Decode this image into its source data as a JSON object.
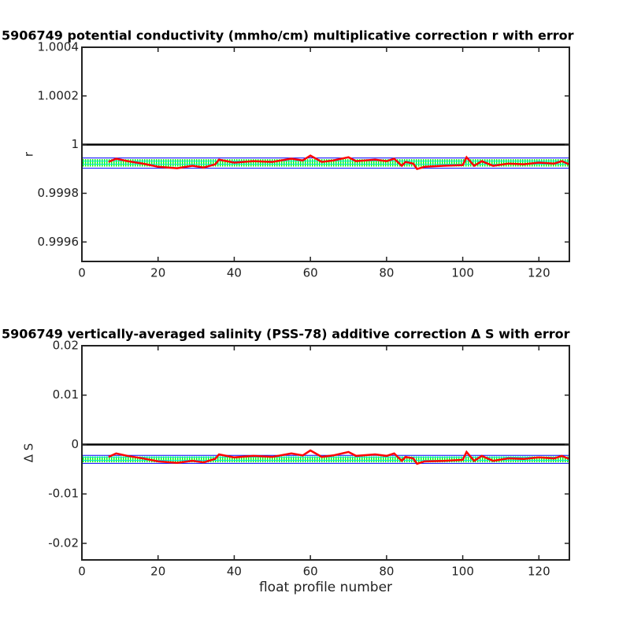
{
  "chart_data": [
    {
      "type": "line",
      "title": "5906749 potential conductivity (mmho/cm) multiplicative correction r with error",
      "ylabel": "r",
      "xlim": [
        0,
        128
      ],
      "ylim": [
        0.99952,
        1.0004
      ],
      "xticks": [
        0,
        20,
        40,
        60,
        80,
        100,
        120
      ],
      "yticks": [
        0.9996,
        0.9998,
        1,
        1.0002,
        1.0004
      ],
      "band": {
        "color": "#00ff00",
        "x": [
          0,
          128
        ],
        "lower": [
          0.99991,
          0.99991
        ],
        "upper": [
          0.99994,
          0.99994
        ]
      },
      "series": [
        {
          "color": "#000000",
          "x": [
            0,
            128
          ],
          "values": [
            1,
            1
          ]
        },
        {
          "color": "#0000ff",
          "x": [
            0,
            128
          ],
          "values": [
            0.999945,
            0.999945
          ]
        },
        {
          "color": "#0000ff",
          "x": [
            0,
            128
          ],
          "values": [
            0.999903,
            0.999903
          ]
        },
        {
          "color": "#ff0000",
          "x": [
            7,
            9,
            12,
            16,
            20,
            25,
            29,
            32,
            35,
            36,
            40,
            45,
            50,
            55,
            58,
            60,
            63,
            66,
            70,
            72,
            77,
            80,
            82,
            84,
            85,
            87,
            88,
            90,
            95,
            100,
            101,
            103,
            105,
            108,
            112,
            116,
            120,
            124,
            126,
            128
          ],
          "values": [
            0.999929,
            0.999942,
            0.999932,
            0.999922,
            0.999909,
            0.999903,
            0.999913,
            0.999906,
            0.999919,
            0.999938,
            0.999926,
            0.999932,
            0.999929,
            0.999942,
            0.999935,
            0.999955,
            0.999929,
            0.999935,
            0.999948,
            0.999932,
            0.999938,
            0.999932,
            0.999942,
            0.999913,
            0.999929,
            0.999922,
            0.9999,
            0.999909,
            0.999913,
            0.999916,
            0.999948,
            0.999913,
            0.999932,
            0.999913,
            0.999922,
            0.999919,
            0.999926,
            0.999922,
            0.999932,
            0.999919
          ]
        }
      ]
    },
    {
      "type": "line",
      "title": "5906749 vertically-averaged salinity (PSS-78) additive correction Δ S with error",
      "ylabel": "Δ S",
      "xlabel": "float profile number",
      "xlim": [
        0,
        128
      ],
      "ylim": [
        -0.02335,
        0.02
      ],
      "xticks": [
        0,
        20,
        40,
        60,
        80,
        100,
        120
      ],
      "yticks": [
        -0.02,
        -0.01,
        0,
        0.01,
        0.02
      ],
      "band": {
        "color": "#00ff00",
        "x": [
          0,
          128
        ],
        "lower": [
          -0.0036,
          -0.0036
        ],
        "upper": [
          -0.0024,
          -0.0024
        ]
      },
      "series": [
        {
          "color": "#000000",
          "x": [
            0,
            128
          ],
          "values": [
            0,
            0
          ]
        },
        {
          "color": "#0000ff",
          "x": [
            0,
            128
          ],
          "values": [
            -0.0022,
            -0.0022
          ]
        },
        {
          "color": "#0000ff",
          "x": [
            0,
            128
          ],
          "values": [
            -0.0038,
            -0.0038
          ]
        },
        {
          "color": "#ff0000",
          "x": [
            7,
            9,
            12,
            16,
            20,
            25,
            29,
            32,
            35,
            36,
            40,
            45,
            50,
            55,
            58,
            60,
            63,
            66,
            70,
            72,
            77,
            80,
            82,
            84,
            85,
            87,
            88,
            90,
            95,
            100,
            101,
            103,
            105,
            108,
            112,
            116,
            120,
            124,
            126,
            128
          ],
          "values": [
            -0.0025,
            -0.0018,
            -0.0023,
            -0.0028,
            -0.0034,
            -0.0037,
            -0.0033,
            -0.0036,
            -0.0029,
            -0.002,
            -0.0026,
            -0.0023,
            -0.0025,
            -0.0018,
            -0.0022,
            -0.0012,
            -0.0025,
            -0.0022,
            -0.0015,
            -0.0023,
            -0.002,
            -0.0023,
            -0.0018,
            -0.0033,
            -0.0025,
            -0.0028,
            -0.0039,
            -0.0034,
            -0.0033,
            -0.0031,
            -0.0015,
            -0.0033,
            -0.0023,
            -0.0033,
            -0.0028,
            -0.0029,
            -0.0026,
            -0.0028,
            -0.0023,
            -0.0029
          ]
        }
      ]
    }
  ]
}
